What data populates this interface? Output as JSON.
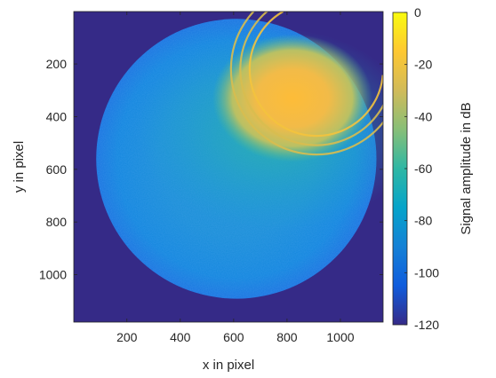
{
  "chart_data": {
    "type": "heatmap",
    "title": "",
    "xlabel": "x in pixel",
    "ylabel": "y in pixel",
    "xlim": [
      1,
      1160
    ],
    "ylim": [
      1180,
      1
    ],
    "y_axis_direction": "reversed",
    "x_ticks": [
      "200",
      "400",
      "600",
      "800",
      "1000"
    ],
    "x_tick_values": [
      200,
      400,
      600,
      800,
      1000
    ],
    "y_ticks": [
      "200",
      "400",
      "600",
      "800",
      "1000"
    ],
    "y_tick_values": [
      200,
      400,
      600,
      800,
      1000
    ],
    "colorbar": {
      "label": "Signal amplitude in dB",
      "limits": [
        -120,
        0
      ],
      "ticks": [
        "0",
        "-20",
        "-40",
        "-60",
        "-80",
        "-100",
        "-120"
      ],
      "tick_values": [
        0,
        -20,
        -40,
        -60,
        -80,
        -100,
        -120
      ],
      "colormap": "parula"
    },
    "background_value_db": -120,
    "disc": {
      "center_x": 610,
      "center_y": 560,
      "radius": 525,
      "typical_value_db": -85,
      "edge_value_db": -95
    },
    "bright_region": {
      "center_x": 820,
      "center_y": 330,
      "value_db": -22
    },
    "arcs": [
      {
        "center_x": 910,
        "center_y": 220,
        "radius": 250,
        "value_db": -30
      },
      {
        "center_x": 910,
        "center_y": 220,
        "radius": 285,
        "value_db": -32
      },
      {
        "center_x": 910,
        "center_y": 220,
        "radius": 320,
        "value_db": -35
      }
    ],
    "grid": false,
    "legend": "none"
  },
  "colors": {
    "parula_stops": [
      "#352a87",
      "#0f5cdd",
      "#1481d6",
      "#06a4ca",
      "#2eb7a4",
      "#87bf77",
      "#d1bb59",
      "#fec832",
      "#f9fb0e"
    ],
    "axis": "#262626"
  }
}
